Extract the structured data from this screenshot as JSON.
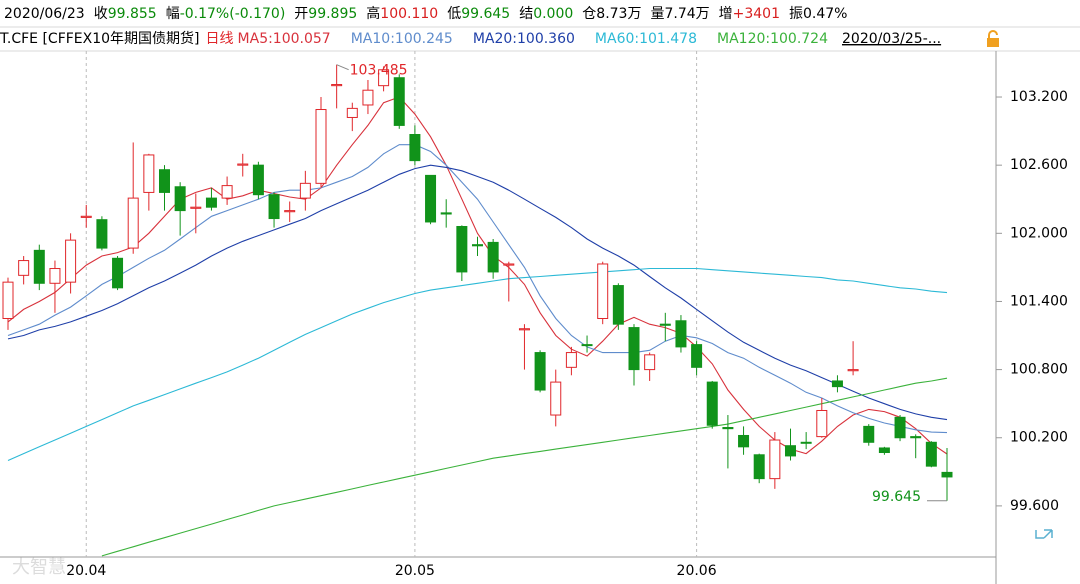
{
  "chart_data": {
    "type": "candlestick",
    "info": [
      {
        "label": "2020/06/23",
        "color": "#000000"
      },
      {
        "label": "收",
        "value": "99.855",
        "color": "#0a8a0a"
      },
      {
        "label": "幅",
        "value": "-0.17%(-0.170)",
        "color": "#0a8a0a"
      },
      {
        "label": "开",
        "value": "99.895",
        "color": "#0a8a0a"
      },
      {
        "label": "高",
        "value": "100.110",
        "color": "#d81e1e"
      },
      {
        "label": "低",
        "value": "99.645",
        "color": "#0a8a0a"
      },
      {
        "label": "结",
        "value": "0.000",
        "color": "#0a8a0a"
      },
      {
        "label": "仓",
        "value": "8.73万",
        "color": "#000000"
      },
      {
        "label": "量",
        "value": "7.74万",
        "color": "#000000"
      },
      {
        "label": "增",
        "value": "+3401",
        "color": "#d81e1e"
      },
      {
        "label": "振",
        "value": "0.47%",
        "color": "#000000"
      }
    ],
    "title": "T.CFE [CFFEX10年期国债期货]",
    "period": "日线",
    "range_label": "2020/03/25-...",
    "watermark": "大智慧",
    "categories": [
      null,
      null,
      null,
      null,
      null,
      "20.04",
      null,
      null,
      null,
      null,
      null,
      null,
      null,
      null,
      null,
      null,
      null,
      null,
      null,
      null,
      null,
      null,
      null,
      null,
      null,
      null,
      "20.05",
      null,
      null,
      null,
      null,
      null,
      null,
      null,
      null,
      null,
      null,
      null,
      null,
      null,
      null,
      null,
      null,
      null,
      "20.06",
      null,
      null,
      null,
      null,
      null,
      null,
      null,
      null,
      null,
      null,
      null,
      null,
      null,
      null,
      null,
      null
    ],
    "open": [
      101.25,
      101.63,
      101.85,
      101.56,
      101.57,
      102.14,
      102.12,
      101.78,
      101.87,
      102.36,
      102.56,
      102.41,
      102.22,
      102.31,
      102.31,
      102.6,
      102.6,
      102.34,
      102.19,
      102.31,
      102.44,
      103.3,
      103.02,
      103.13,
      103.3,
      103.37,
      102.87,
      102.51,
      102.18,
      102.06,
      101.9,
      101.92,
      101.72,
      101.15,
      100.95,
      100.4,
      100.82,
      101.02,
      101.25,
      101.54,
      101.17,
      100.8,
      101.2,
      101.23,
      101.02,
      100.69,
      100.29,
      100.22,
      100.05,
      99.84,
      100.13,
      100.16,
      100.21,
      100.7,
      100.79,
      100.3,
      100.11,
      100.38,
      100.21,
      100.16,
      99.895
    ],
    "high": [
      101.61,
      101.8,
      101.9,
      101.76,
      102.0,
      102.25,
      102.15,
      101.8,
      102.8,
      102.7,
      102.6,
      102.45,
      102.35,
      102.4,
      102.5,
      102.7,
      102.63,
      102.36,
      102.28,
      102.55,
      103.2,
      103.485,
      103.15,
      103.35,
      103.47,
      103.4,
      102.95,
      102.51,
      102.3,
      102.07,
      101.97,
      101.95,
      101.75,
      101.2,
      100.97,
      100.8,
      101.0,
      101.1,
      101.75,
      101.56,
      101.2,
      100.95,
      101.3,
      101.28,
      101.05,
      100.7,
      100.4,
      100.3,
      100.06,
      100.25,
      100.28,
      100.25,
      100.55,
      100.75,
      101.05,
      100.32,
      100.12,
      100.4,
      100.23,
      100.17,
      100.11
    ],
    "low": [
      101.15,
      101.55,
      101.5,
      101.3,
      101.47,
      102.05,
      101.85,
      101.5,
      101.82,
      102.2,
      102.2,
      101.98,
      102.0,
      102.2,
      102.25,
      102.5,
      102.3,
      102.05,
      102.1,
      102.2,
      102.4,
      103.1,
      102.9,
      103.05,
      103.25,
      102.92,
      102.6,
      102.08,
      102.05,
      101.58,
      101.8,
      101.6,
      101.4,
      100.8,
      100.6,
      100.3,
      100.75,
      100.95,
      101.2,
      101.15,
      100.66,
      100.7,
      101.05,
      100.95,
      100.75,
      100.28,
      99.93,
      100.05,
      99.8,
      99.75,
      100.0,
      100.1,
      100.2,
      100.6,
      100.75,
      100.13,
      100.05,
      100.17,
      100.02,
      99.94,
      99.645
    ],
    "close": [
      101.57,
      101.76,
      101.56,
      101.69,
      101.94,
      102.15,
      101.87,
      101.52,
      102.31,
      102.69,
      102.36,
      102.2,
      102.23,
      102.23,
      102.42,
      102.61,
      102.34,
      102.13,
      102.2,
      102.44,
      103.09,
      103.31,
      103.1,
      103.26,
      103.44,
      102.95,
      102.64,
      102.1,
      102.17,
      101.66,
      101.89,
      101.66,
      101.73,
      101.16,
      100.62,
      100.69,
      100.95,
      101.02,
      101.73,
      101.2,
      100.8,
      100.93,
      101.19,
      101.0,
      100.82,
      100.31,
      100.28,
      100.12,
      99.84,
      100.18,
      100.04,
      100.16,
      100.44,
      100.65,
      100.8,
      100.16,
      100.07,
      100.2,
      100.2,
      99.95,
      99.855
    ],
    "up_color": "#e0262a",
    "down_color": "#11931a",
    "max_label": "103.485",
    "min_label": "99.645",
    "series": [
      {
        "name": "MA5:100.057",
        "color": "#d8323c",
        "values": [
          101.22,
          101.33,
          101.4,
          101.48,
          101.6,
          101.72,
          101.8,
          101.83,
          101.88,
          102.0,
          102.15,
          102.3,
          102.36,
          102.4,
          102.3,
          102.33,
          102.38,
          102.35,
          102.32,
          102.3,
          102.4,
          102.6,
          102.78,
          102.95,
          103.15,
          103.2,
          103.05,
          102.85,
          102.6,
          102.3,
          102.0,
          101.8,
          101.7,
          101.55,
          101.3,
          101.1,
          100.98,
          100.92,
          101.05,
          101.2,
          101.26,
          101.2,
          101.17,
          101.12,
          101.0,
          100.85,
          100.62,
          100.45,
          100.3,
          100.18,
          100.1,
          100.06,
          100.17,
          100.3,
          100.4,
          100.45,
          100.43,
          100.38,
          100.28,
          100.15,
          100.057
        ]
      },
      {
        "name": "MA10:100.245",
        "color": "#5f8ccc",
        "values": [
          101.1,
          101.15,
          101.2,
          101.28,
          101.35,
          101.45,
          101.55,
          101.62,
          101.7,
          101.78,
          101.85,
          101.95,
          102.05,
          102.15,
          102.2,
          102.25,
          102.3,
          102.36,
          102.38,
          102.38,
          102.4,
          102.45,
          102.5,
          102.58,
          102.7,
          102.78,
          102.78,
          102.72,
          102.6,
          102.45,
          102.3,
          102.1,
          101.9,
          101.7,
          101.45,
          101.25,
          101.1,
          101.0,
          100.95,
          100.95,
          100.95,
          100.97,
          101.05,
          101.1,
          101.08,
          101.03,
          100.95,
          100.9,
          100.82,
          100.75,
          100.68,
          100.6,
          100.55,
          100.48,
          100.42,
          100.37,
          100.33,
          100.3,
          100.27,
          100.25,
          100.245
        ]
      },
      {
        "name": "MA20:100.360",
        "color": "#1f3fa8",
        "values": [
          101.07,
          101.1,
          101.15,
          101.18,
          101.22,
          101.27,
          101.32,
          101.38,
          101.45,
          101.52,
          101.58,
          101.65,
          101.72,
          101.8,
          101.87,
          101.93,
          101.98,
          102.03,
          102.08,
          102.13,
          102.2,
          102.26,
          102.32,
          102.38,
          102.45,
          102.52,
          102.57,
          102.6,
          102.58,
          102.55,
          102.5,
          102.45,
          102.38,
          102.3,
          102.22,
          102.14,
          102.05,
          101.95,
          101.87,
          101.8,
          101.72,
          101.62,
          101.52,
          101.43,
          101.33,
          101.23,
          101.13,
          101.04,
          100.97,
          100.9,
          100.84,
          100.79,
          100.73,
          100.67,
          100.61,
          100.55,
          100.5,
          100.45,
          100.41,
          100.38,
          100.36
        ]
      },
      {
        "name": "MA60:101.478",
        "color": "#2cb9d6",
        "values": [
          100.0,
          100.06,
          100.12,
          100.18,
          100.24,
          100.3,
          100.36,
          100.42,
          100.48,
          100.53,
          100.58,
          100.63,
          100.68,
          100.73,
          100.78,
          100.84,
          100.9,
          100.97,
          101.04,
          101.11,
          101.17,
          101.23,
          101.29,
          101.34,
          101.39,
          101.43,
          101.47,
          101.5,
          101.52,
          101.54,
          101.56,
          101.58,
          101.6,
          101.61,
          101.62,
          101.63,
          101.64,
          101.65,
          101.66,
          101.67,
          101.68,
          101.69,
          101.69,
          101.69,
          101.69,
          101.68,
          101.67,
          101.66,
          101.65,
          101.64,
          101.63,
          101.62,
          101.61,
          101.59,
          101.58,
          101.56,
          101.54,
          101.52,
          101.51,
          101.49,
          101.478
        ]
      },
      {
        "name": "MA120:100.724",
        "color": "#3bb23b",
        "values": [
          null,
          null,
          null,
          null,
          null,
          null,
          99.16,
          99.2,
          99.24,
          99.28,
          99.32,
          99.36,
          99.4,
          99.44,
          99.48,
          99.52,
          99.56,
          99.6,
          99.63,
          99.66,
          99.69,
          99.72,
          99.75,
          99.78,
          99.81,
          99.84,
          99.87,
          99.9,
          99.93,
          99.96,
          99.99,
          100.02,
          100.04,
          100.06,
          100.08,
          100.1,
          100.12,
          100.14,
          100.16,
          100.18,
          100.2,
          100.22,
          100.24,
          100.26,
          100.28,
          100.3,
          100.32,
          100.35,
          100.38,
          100.41,
          100.44,
          100.47,
          100.5,
          100.53,
          100.56,
          100.59,
          100.62,
          100.65,
          100.68,
          100.7,
          100.724
        ]
      }
    ],
    "ylim": [
      99.15,
      103.57
    ],
    "yticks": [
      {
        "value": 99.6,
        "label": "99.600"
      },
      {
        "value": 100.2,
        "label": "100.200"
      },
      {
        "value": 100.8,
        "label": "100.800"
      },
      {
        "value": 101.4,
        "label": "101.400"
      },
      {
        "value": 102.0,
        "label": "102.000"
      },
      {
        "value": 102.6,
        "label": "102.600"
      },
      {
        "value": 103.2,
        "label": "103.200"
      }
    ]
  }
}
